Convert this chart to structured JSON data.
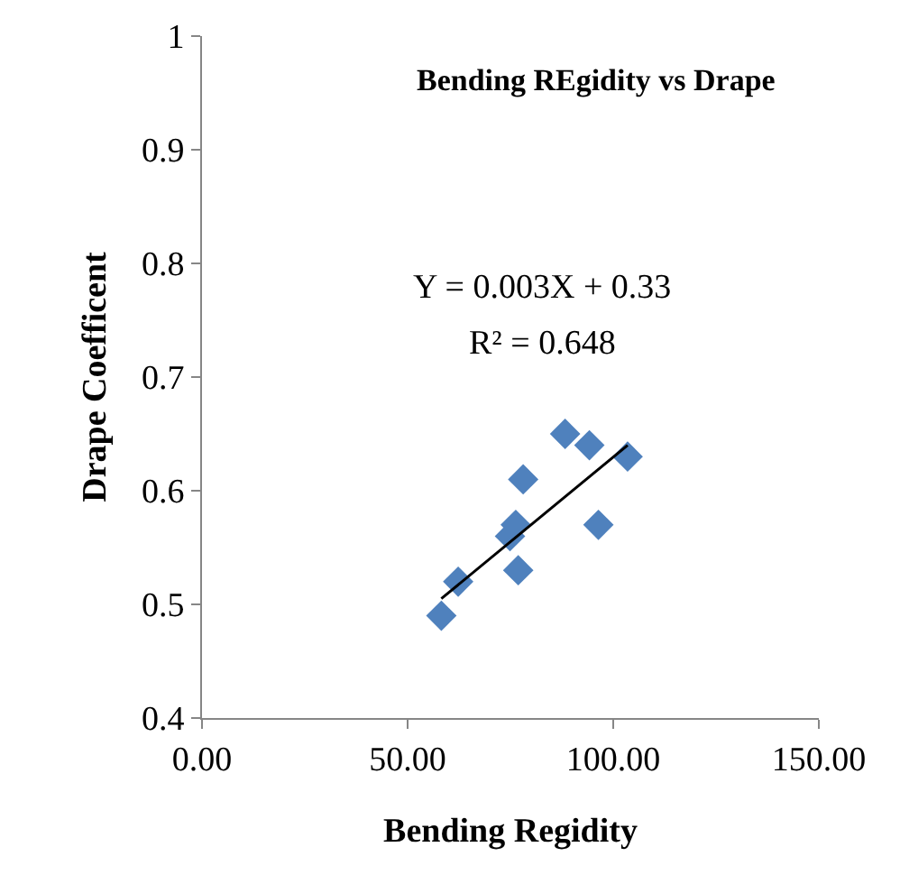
{
  "chart_data": {
    "type": "scatter",
    "title": "Bending REgidity vs Drape",
    "xlabel": "Bending Regidity",
    "ylabel": "Drape Coefficent",
    "x": [
      58.2,
      62.3,
      74.9,
      76.3,
      76.9,
      78.1,
      88.3,
      94.2,
      96.4,
      103.5
    ],
    "series": [
      {
        "color": "#4f81bd",
        "values": [
          0.49,
          0.52,
          0.56,
          0.57,
          0.53,
          0.61,
          0.65,
          0.64,
          0.57,
          0.63
        ],
        "marker": "diamond"
      },
      {
        "type": "line",
        "color": "#000000",
        "x": [
          58.2,
          103.5
        ],
        "values": [
          0.505,
          0.64
        ]
      }
    ],
    "annotations": [
      "Y = 0.003X + 0.33",
      "R² = 0.648"
    ],
    "xlim": [
      0,
      150
    ],
    "xticks": [
      {
        "value": 0,
        "label": "0.00"
      },
      {
        "value": 50,
        "label": "50.00"
      },
      {
        "value": 100,
        "label": "100.00"
      },
      {
        "value": 150,
        "label": "150.00"
      }
    ],
    "ylim": [
      0.4,
      1
    ],
    "yticks": [
      0.4,
      0.5,
      0.6,
      0.7,
      0.8,
      0.9,
      1
    ],
    "legend": false
  }
}
